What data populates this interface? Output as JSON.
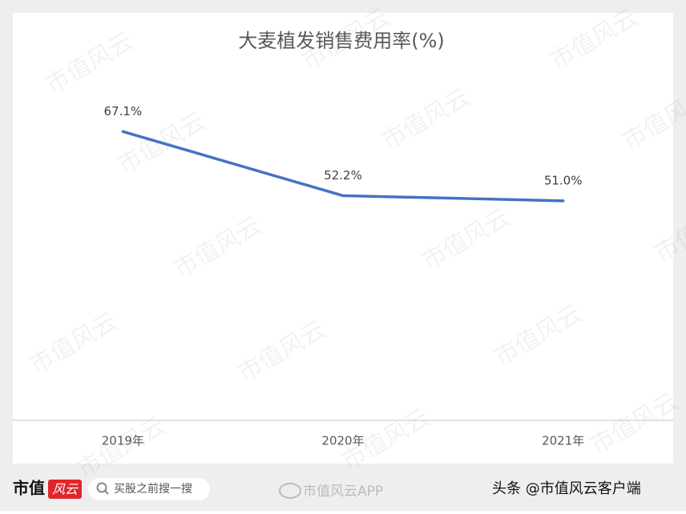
{
  "chart_data": {
    "type": "line",
    "title": "大麦植发销售费用率(%)",
    "categories": [
      "2019年",
      "2020年",
      "2021年"
    ],
    "series": [
      {
        "color": "#4472c4",
        "values": [
          67.1,
          52.2,
          51.0
        ],
        "value_labels": [
          "67.1%",
          "52.2%",
          "51.0%"
        ]
      }
    ],
    "ylim": [
      0,
      80
    ]
  },
  "watermark": "市值风云",
  "footer": {
    "brand": "市值",
    "logo": "风云",
    "search": "买股之前搜一搜",
    "app": "市值风云APP",
    "source": "头条 @市值风云客户端"
  }
}
